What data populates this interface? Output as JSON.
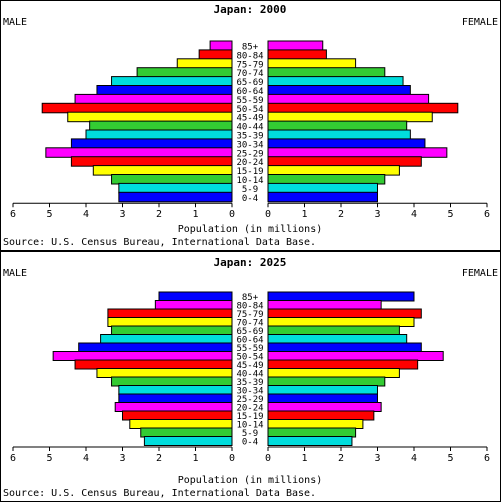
{
  "chart_data": [
    {
      "type": "bar",
      "title": "Japan: 2000",
      "left_label": "MALE",
      "right_label": "FEMALE",
      "xlabel": "Population (in millions)",
      "source": "Source: U.S. Census Bureau, International Data Base.",
      "xlim": [
        0,
        6
      ],
      "x_ticks": [
        "6",
        "5",
        "4",
        "3",
        "2",
        "1",
        "0",
        "0",
        "1",
        "2",
        "3",
        "4",
        "5",
        "6"
      ],
      "categories": [
        "85+",
        "80-84",
        "75-79",
        "70-74",
        "65-69",
        "60-64",
        "55-59",
        "50-54",
        "45-49",
        "40-44",
        "35-39",
        "30-34",
        "25-29",
        "20-24",
        "15-19",
        "10-14",
        "5-9",
        "0-4"
      ],
      "colors": [
        "#ff00ff",
        "#ff0000",
        "#ffff00",
        "#33cc33",
        "#00dddd",
        "#0000ff",
        "#ff00ff",
        "#ff0000",
        "#ffff00",
        "#33cc33",
        "#00dddd",
        "#0000ff",
        "#ff00ff",
        "#ff0000",
        "#ffff00",
        "#33cc33",
        "#00dddd",
        "#0000ff"
      ],
      "series": [
        {
          "name": "MALE",
          "values": [
            0.6,
            0.9,
            1.5,
            2.6,
            3.3,
            3.7,
            4.3,
            5.2,
            4.5,
            3.9,
            4.0,
            4.4,
            5.1,
            4.4,
            3.8,
            3.3,
            3.1,
            3.1
          ]
        },
        {
          "name": "FEMALE",
          "values": [
            1.5,
            1.6,
            2.4,
            3.2,
            3.7,
            3.9,
            4.4,
            5.2,
            4.5,
            3.8,
            3.9,
            4.3,
            4.9,
            4.2,
            3.6,
            3.2,
            3.0,
            3.0
          ]
        }
      ]
    },
    {
      "type": "bar",
      "title": "Japan: 2025",
      "left_label": "MALE",
      "right_label": "FEMALE",
      "xlabel": "Population (in millions)",
      "source": "Source: U.S. Census Bureau, International Data Base.",
      "xlim": [
        0,
        6
      ],
      "x_ticks": [
        "6",
        "5",
        "4",
        "3",
        "2",
        "1",
        "0",
        "0",
        "1",
        "2",
        "3",
        "4",
        "5",
        "6"
      ],
      "categories": [
        "85+",
        "80-84",
        "75-79",
        "70-74",
        "65-69",
        "60-64",
        "55-59",
        "50-54",
        "45-49",
        "40-44",
        "35-39",
        "30-34",
        "25-29",
        "20-24",
        "15-19",
        "10-14",
        "5-9",
        "0-4"
      ],
      "colors": [
        "#0000ff",
        "#ff00ff",
        "#ff0000",
        "#ffff00",
        "#33cc33",
        "#00dddd",
        "#0000ff",
        "#ff00ff",
        "#ff0000",
        "#ffff00",
        "#33cc33",
        "#00dddd",
        "#0000ff",
        "#ff00ff",
        "#ff0000",
        "#ffff00",
        "#33cc33",
        "#00dddd"
      ],
      "series": [
        {
          "name": "MALE",
          "values": [
            2.0,
            2.1,
            3.4,
            3.4,
            3.3,
            3.6,
            4.2,
            4.9,
            4.3,
            3.7,
            3.3,
            3.1,
            3.1,
            3.2,
            3.0,
            2.8,
            2.5,
            2.4
          ]
        },
        {
          "name": "FEMALE",
          "values": [
            4.0,
            3.1,
            4.2,
            4.0,
            3.6,
            3.8,
            4.2,
            4.8,
            4.1,
            3.6,
            3.2,
            3.0,
            3.0,
            3.1,
            2.9,
            2.6,
            2.4,
            2.3
          ]
        }
      ]
    }
  ]
}
